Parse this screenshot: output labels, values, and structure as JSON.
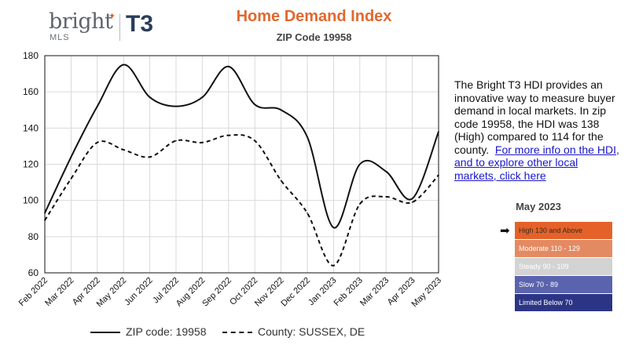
{
  "logo": {
    "brand": "bright",
    "sub": "MLS",
    "partner": "T3"
  },
  "title": "Home Demand Index",
  "subtitle": "ZIP Code 19958",
  "description": {
    "text": "The Bright T3 HDI provides an innovative way to measure buyer demand in local markets. In zip code 19958, the HDI was 138 (High) compared to 114 for the county.",
    "link_text": "For more info on the HDI, and to explore other local markets, click here"
  },
  "scale_legend": {
    "title": "May 2023",
    "current_level": "High 130 and Above",
    "levels": [
      {
        "label": "High 130 and Above",
        "color": "#e4622a",
        "text_color": "#3a2a20"
      },
      {
        "label": "Moderate 110 - 129",
        "color": "#e48a62",
        "text_color": "#ffffff"
      },
      {
        "label": "Steady 90 - 109",
        "color": "#d3d3d3",
        "text_color": "#ffffff"
      },
      {
        "label": "Slow 70 - 89",
        "color": "#5a63ad",
        "text_color": "#ffffff"
      },
      {
        "label": "Limited Below 70",
        "color": "#2c3585",
        "text_color": "#ffffff"
      }
    ]
  },
  "chart_data": {
    "type": "line",
    "title": "Home Demand Index",
    "subtitle": "ZIP Code 19958",
    "categories": [
      "Feb 2022",
      "Mar 2022",
      "Apr 2022",
      "May 2022",
      "Jun 2022",
      "Jul 2022",
      "Aug 2022",
      "Sep 2022",
      "Oct 2022",
      "Nov 2022",
      "Dec 2022",
      "Jan 2023",
      "Feb 2023",
      "Mar 2023",
      "Apr 2023",
      "May 2023"
    ],
    "series": [
      {
        "name": "ZIP code: 19958",
        "style": "solid",
        "values": [
          93,
          124,
          152,
          175,
          157,
          152,
          157,
          174,
          153,
          150,
          135,
          85,
          120,
          116,
          101,
          138
        ]
      },
      {
        "name": "County: SUSSEX, DE",
        "style": "dashed",
        "values": [
          89,
          112,
          132,
          128,
          124,
          133,
          132,
          136,
          133,
          111,
          93,
          64,
          98,
          102,
          99,
          114
        ]
      }
    ],
    "ylim": [
      60,
      180
    ],
    "yticks": [
      60,
      80,
      100,
      120,
      140,
      160,
      180
    ],
    "grid": true,
    "xlabel": "",
    "ylabel": "",
    "legend": "bottom"
  }
}
